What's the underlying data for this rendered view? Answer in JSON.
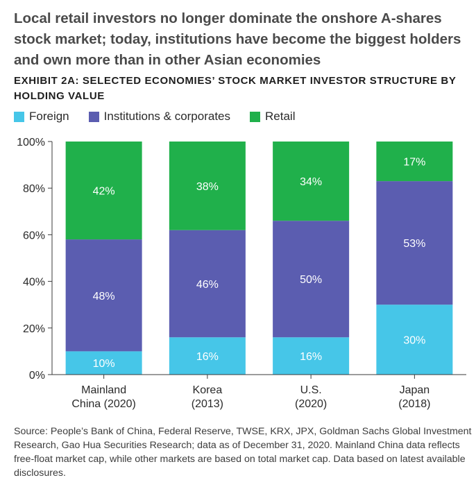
{
  "headline": "Local retail investors no longer dominate the onshore A-shares stock market; today, institutions have become the biggest holders and own more than in other Asian economies",
  "exhibit_title": "EXHIBIT 2A: SELECTED ECONOMIES’ STOCK MARKET INVESTOR STRUCTURE BY HOLDING VALUE",
  "source_note": "Source: People’s Bank of China, Federal Reserve, TWSE, KRX, JPX, Goldman Sachs Global Investment Research, Gao Hua Securities Research; data as of December 31, 2020. Mainland China data reflects free-float market cap, while other markets are based on total market cap. Data based on latest available disclosures.",
  "colors": {
    "foreign": "#46c6e8",
    "institutions": "#5b5db0",
    "retail": "#20b04b",
    "data_label": "#ffffff",
    "axis": "#3a3a3a"
  },
  "chart_data": {
    "type": "bar",
    "stacked": true,
    "categories": [
      [
        "Mainland",
        "China (2020)"
      ],
      [
        "Korea",
        "(2013)"
      ],
      [
        "U.S.",
        "(2020)"
      ],
      [
        "Japan",
        "(2018)"
      ]
    ],
    "series": [
      {
        "name": "Foreign",
        "values": [
          10,
          16,
          16,
          30
        ],
        "labels": [
          "10%",
          "16%",
          "16%",
          "30%"
        ]
      },
      {
        "name": "Institutions & corporates",
        "values": [
          48,
          46,
          50,
          53
        ],
        "labels": [
          "48%",
          "46%",
          "50%",
          "53%"
        ]
      },
      {
        "name": "Retail",
        "values": [
          42,
          38,
          34,
          17
        ],
        "labels": [
          "42%",
          "38%",
          "34%",
          "17%"
        ]
      }
    ],
    "ylim": [
      0,
      100
    ],
    "yticks": [
      0,
      20,
      40,
      60,
      80,
      100
    ],
    "ytick_labels": [
      "0%",
      "20%",
      "40%",
      "60%",
      "80%",
      "100%"
    ],
    "legend_position": "top-left",
    "grid": false
  }
}
